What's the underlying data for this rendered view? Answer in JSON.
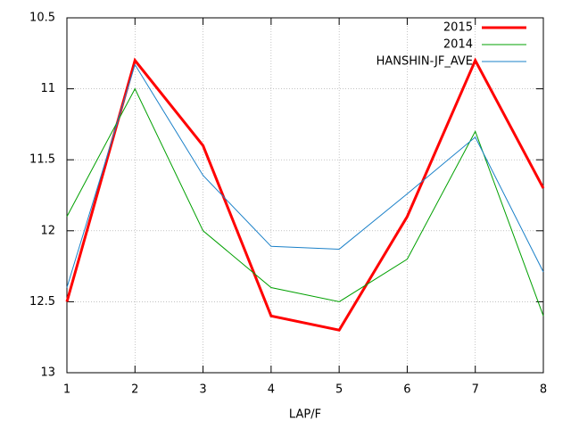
{
  "chart_data": {
    "type": "line",
    "xlabel": "LAP/F",
    "x": [
      1,
      2,
      3,
      4,
      5,
      6,
      7,
      8
    ],
    "xlim": [
      1,
      8
    ],
    "xticks": [
      1,
      2,
      3,
      4,
      5,
      6,
      7,
      8
    ],
    "ylim": [
      10.5,
      13
    ],
    "yticks": [
      10.5,
      11,
      11.5,
      12,
      12.5,
      13
    ],
    "y_reversed": true,
    "grid": true,
    "legend": "top-right",
    "series": [
      {
        "name": "2015",
        "color": "#ff0000",
        "width": 3,
        "values": [
          12.5,
          10.8,
          11.4,
          12.6,
          12.7,
          11.9,
          10.8,
          11.7
        ]
      },
      {
        "name": "2014",
        "color": "#00a000",
        "width": 1,
        "values": [
          11.9,
          11.0,
          12.0,
          12.4,
          12.5,
          12.2,
          11.3,
          12.6
        ]
      },
      {
        "name": "HANSHIN-JF_AVE",
        "color": "#1a80c8",
        "width": 1,
        "values": [
          12.4,
          10.83,
          11.61,
          12.11,
          12.13,
          11.74,
          11.34,
          12.29
        ]
      }
    ]
  }
}
